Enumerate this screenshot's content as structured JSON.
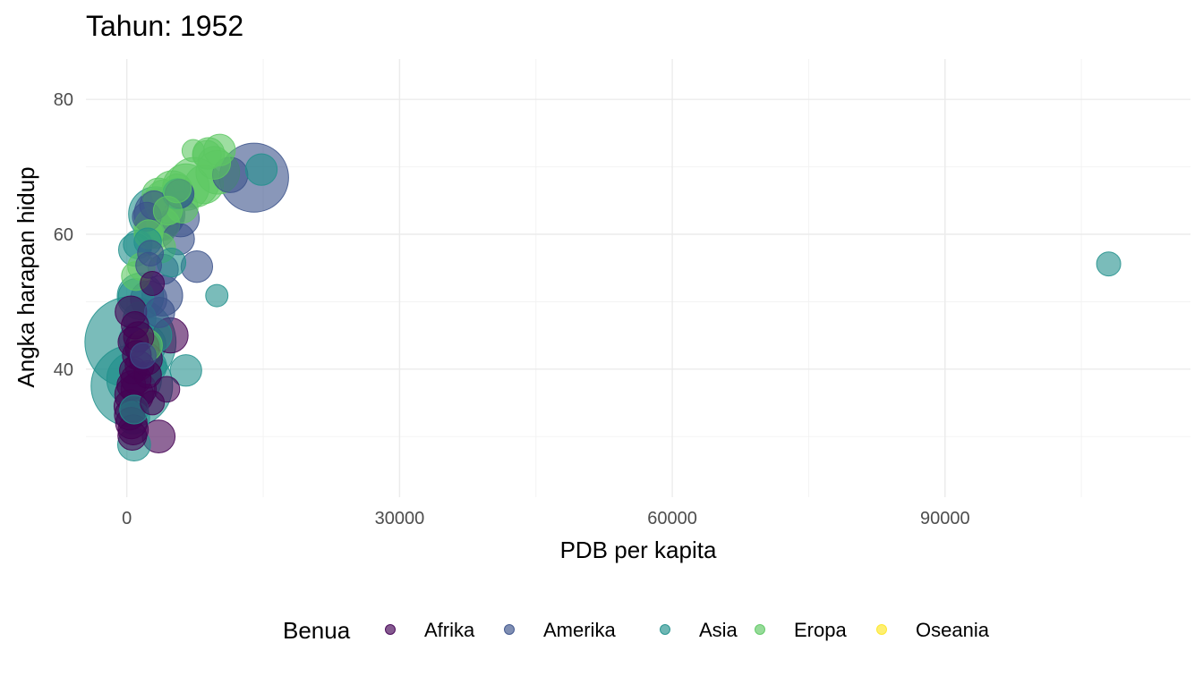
{
  "chart_data": {
    "type": "scatter",
    "title": "Tahun: 1952",
    "xlabel": "PDB per kapita",
    "ylabel": "Angka harapan hidup",
    "xlim": [
      -4500,
      117000
    ],
    "ylim": [
      21,
      86
    ],
    "x_ticks": [
      0,
      30000,
      60000,
      90000
    ],
    "x_tick_labels": [
      "0",
      "30000",
      "60000",
      "90000"
    ],
    "y_ticks": [
      40,
      60,
      80
    ],
    "y_tick_labels": [
      "40",
      "60",
      "80"
    ],
    "grid": true,
    "legend": {
      "title": "Benua",
      "placement": "bottom",
      "entries": [
        {
          "name": "Afrika",
          "color": "#440154"
        },
        {
          "name": "Amerika",
          "color": "#3b528b"
        },
        {
          "name": "Asia",
          "color": "#21908c"
        },
        {
          "name": "Eropa",
          "color": "#5dc863"
        },
        {
          "name": "Oseania",
          "color": "#fde725"
        }
      ]
    },
    "series": [
      {
        "name": "Afrika",
        "color": "#440154",
        "points": [
          {
            "x": 450,
            "y": 48.5,
            "size": 0.24
          },
          {
            "x": 900,
            "y": 46.5,
            "size": 0.18
          },
          {
            "x": 700,
            "y": 44.0,
            "size": 0.22
          },
          {
            "x": 1300,
            "y": 44.8,
            "size": 0.22
          },
          {
            "x": 1700,
            "y": 43.2,
            "size": 0.28
          },
          {
            "x": 1100,
            "y": 42.1,
            "size": 0.2
          },
          {
            "x": 2100,
            "y": 41.5,
            "size": 0.26
          },
          {
            "x": 1400,
            "y": 40.5,
            "size": 0.2
          },
          {
            "x": 700,
            "y": 39.8,
            "size": 0.18
          },
          {
            "x": 1000,
            "y": 38.5,
            "size": 0.22
          },
          {
            "x": 500,
            "y": 37.6,
            "size": 0.2
          },
          {
            "x": 1300,
            "y": 37.0,
            "size": 0.3
          },
          {
            "x": 800,
            "y": 36.2,
            "size": 0.36
          },
          {
            "x": 400,
            "y": 34.5,
            "size": 0.26
          },
          {
            "x": 300,
            "y": 33.2,
            "size": 0.22
          },
          {
            "x": 500,
            "y": 32.0,
            "size": 0.24
          },
          {
            "x": 700,
            "y": 31.0,
            "size": 0.22
          },
          {
            "x": 600,
            "y": 30.1,
            "size": 0.2
          },
          {
            "x": 3500,
            "y": 30.0,
            "size": 0.26
          },
          {
            "x": 4800,
            "y": 45.0,
            "size": 0.3
          },
          {
            "x": 4400,
            "y": 37.0,
            "size": 0.16
          },
          {
            "x": 2800,
            "y": 52.7,
            "size": 0.14
          },
          {
            "x": 2800,
            "y": 35.0,
            "size": 0.14
          },
          {
            "x": 2300,
            "y": 39.2,
            "size": 0.18
          }
        ]
      },
      {
        "name": "Amerika",
        "color": "#3b528b",
        "points": [
          {
            "x": 13990,
            "y": 68.4,
            "size": 1.15
          },
          {
            "x": 11370,
            "y": 68.8,
            "size": 0.3
          },
          {
            "x": 5900,
            "y": 62.4,
            "size": 0.34
          },
          {
            "x": 5700,
            "y": 59.3,
            "size": 0.24
          },
          {
            "x": 7700,
            "y": 55.2,
            "size": 0.24
          },
          {
            "x": 3900,
            "y": 50.9,
            "size": 0.4
          },
          {
            "x": 2400,
            "y": 50.4,
            "size": 0.32
          },
          {
            "x": 3600,
            "y": 48.4,
            "size": 0.22
          },
          {
            "x": 2200,
            "y": 62.6,
            "size": 0.2
          },
          {
            "x": 2600,
            "y": 57.2,
            "size": 0.16
          },
          {
            "x": 4000,
            "y": 54.8,
            "size": 0.22
          },
          {
            "x": 2400,
            "y": 55.4,
            "size": 0.16
          },
          {
            "x": 3000,
            "y": 64.3,
            "size": 0.2
          },
          {
            "x": 5800,
            "y": 66.0,
            "size": 0.2
          },
          {
            "x": 3600,
            "y": 63.0,
            "size": 0.62
          },
          {
            "x": 1800,
            "y": 42.0,
            "size": 0.16
          }
        ]
      },
      {
        "name": "Asia",
        "color": "#21908c",
        "points": [
          {
            "x": 108000,
            "y": 55.6,
            "size": 0.14
          },
          {
            "x": 14800,
            "y": 69.6,
            "size": 0.24
          },
          {
            "x": 9900,
            "y": 50.9,
            "size": 0.12
          },
          {
            "x": 400,
            "y": 44.0,
            "size": 2.0
          },
          {
            "x": 550,
            "y": 37.5,
            "size": 1.6
          },
          {
            "x": 800,
            "y": 38.5,
            "size": 0.72
          },
          {
            "x": 3200,
            "y": 63.0,
            "size": 0.72
          },
          {
            "x": 1500,
            "y": 50.8,
            "size": 0.52
          },
          {
            "x": 2000,
            "y": 43.6,
            "size": 0.42
          },
          {
            "x": 4900,
            "y": 55.8,
            "size": 0.2
          },
          {
            "x": 6500,
            "y": 39.8,
            "size": 0.24
          },
          {
            "x": 800,
            "y": 28.8,
            "size": 0.26
          },
          {
            "x": 900,
            "y": 57.7,
            "size": 0.26
          },
          {
            "x": 1200,
            "y": 58.5,
            "size": 0.2
          },
          {
            "x": 2300,
            "y": 58.9,
            "size": 0.18
          },
          {
            "x": 5600,
            "y": 66.0,
            "size": 0.22
          },
          {
            "x": 1400,
            "y": 47.5,
            "size": 0.26
          },
          {
            "x": 1100,
            "y": 44.4,
            "size": 0.3
          },
          {
            "x": 3000,
            "y": 45.0,
            "size": 0.3
          },
          {
            "x": 2500,
            "y": 40.4,
            "size": 0.28
          },
          {
            "x": 700,
            "y": 32.8,
            "size": 0.26
          },
          {
            "x": 800,
            "y": 34.0,
            "size": 0.2
          },
          {
            "x": 1000,
            "y": 50.8,
            "size": 0.3
          }
        ]
      },
      {
        "name": "Eropa",
        "color": "#5dc863",
        "points": [
          {
            "x": 7400,
            "y": 67.7,
            "size": 0.6
          },
          {
            "x": 6500,
            "y": 67.0,
            "size": 0.52
          },
          {
            "x": 10000,
            "y": 69.2,
            "size": 0.46
          },
          {
            "x": 8500,
            "y": 67.4,
            "size": 0.36
          },
          {
            "x": 9000,
            "y": 72.0,
            "size": 0.24
          },
          {
            "x": 10200,
            "y": 72.5,
            "size": 0.24
          },
          {
            "x": 8800,
            "y": 71.8,
            "size": 0.2
          },
          {
            "x": 7300,
            "y": 72.4,
            "size": 0.12
          },
          {
            "x": 5000,
            "y": 66.4,
            "size": 0.4
          },
          {
            "x": 4200,
            "y": 65.0,
            "size": 0.42
          },
          {
            "x": 3500,
            "y": 65.9,
            "size": 0.26
          },
          {
            "x": 3100,
            "y": 61.0,
            "size": 0.42
          },
          {
            "x": 4000,
            "y": 61.5,
            "size": 0.26
          },
          {
            "x": 3700,
            "y": 58.0,
            "size": 0.22
          },
          {
            "x": 2400,
            "y": 60.0,
            "size": 0.2
          },
          {
            "x": 1600,
            "y": 55.2,
            "size": 0.18
          },
          {
            "x": 1000,
            "y": 53.8,
            "size": 0.2
          },
          {
            "x": 2100,
            "y": 43.5,
            "size": 0.26
          },
          {
            "x": 6100,
            "y": 64.0,
            "size": 0.24
          },
          {
            "x": 4500,
            "y": 63.5,
            "size": 0.2
          },
          {
            "x": 9600,
            "y": 70.6,
            "size": 0.26
          },
          {
            "x": 5500,
            "y": 66.8,
            "size": 0.2
          }
        ]
      },
      {
        "name": "Oseania",
        "color": "#fde725",
        "points": []
      }
    ]
  }
}
